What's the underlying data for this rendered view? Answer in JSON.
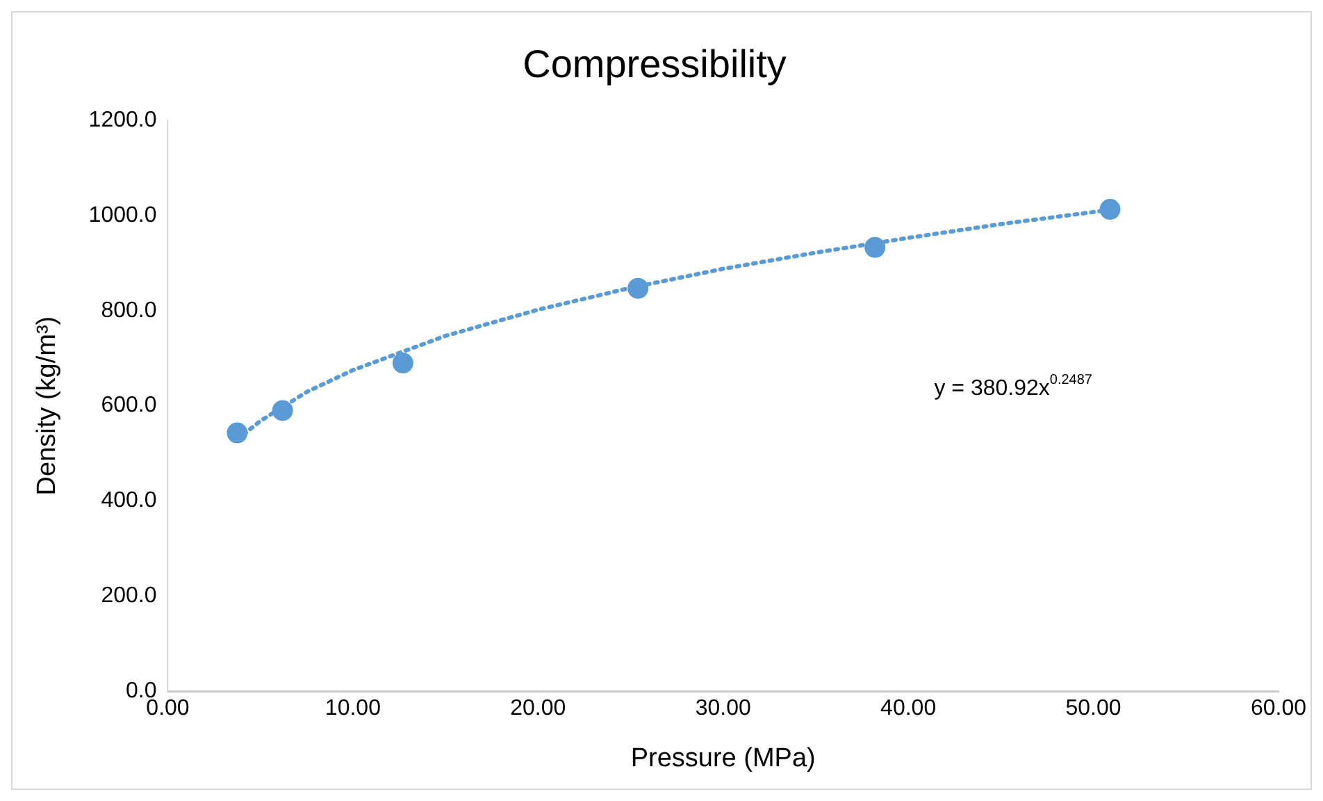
{
  "chart_data": {
    "type": "scatter",
    "title": "Compressibility",
    "xlabel": "Pressure (MPa)",
    "ylabel": "Density (kg/m³)",
    "x": [
      3.75,
      6.2,
      12.7,
      25.4,
      38.2,
      50.9
    ],
    "series": [
      {
        "color": "#5b9bd5",
        "values": [
          543,
          590,
          690,
          847,
          933,
          1013
        ],
        "marker": "circle"
      },
      {
        "type": "line",
        "color": "#5b9bd5",
        "line_style": "dotted",
        "marker": "none",
        "x": [
          3.75,
          5,
          7.5,
          10,
          15,
          20,
          25,
          30,
          35,
          40,
          45,
          50.9
        ],
        "values": [
          529,
          568,
          629,
          675,
          747,
          802,
          848,
          888,
          922,
          953,
          982,
          1012
        ]
      }
    ],
    "xlim": [
      0,
      60
    ],
    "xticks": [
      {
        "value": 0,
        "label": "0.00"
      },
      {
        "value": 10,
        "label": "10.00"
      },
      {
        "value": 20,
        "label": "20.00"
      },
      {
        "value": 30,
        "label": "30.00"
      },
      {
        "value": 40,
        "label": "40.00"
      },
      {
        "value": 50,
        "label": "50.00"
      },
      {
        "value": 60,
        "label": "60.00"
      }
    ],
    "ylim": [
      0,
      1200
    ],
    "yticks": [
      {
        "value": 0,
        "label": "0.0"
      },
      {
        "value": 200,
        "label": "200.0"
      },
      {
        "value": 400,
        "label": "400.0"
      },
      {
        "value": 600,
        "label": "600.0"
      },
      {
        "value": 800,
        "label": "800.0"
      },
      {
        "value": 1000,
        "label": "1000.0"
      },
      {
        "value": 1200,
        "label": "1200.0"
      }
    ],
    "annotations": [
      "y = 380.92x$^{0.2487}$"
    ],
    "grid": false,
    "legend": false
  }
}
